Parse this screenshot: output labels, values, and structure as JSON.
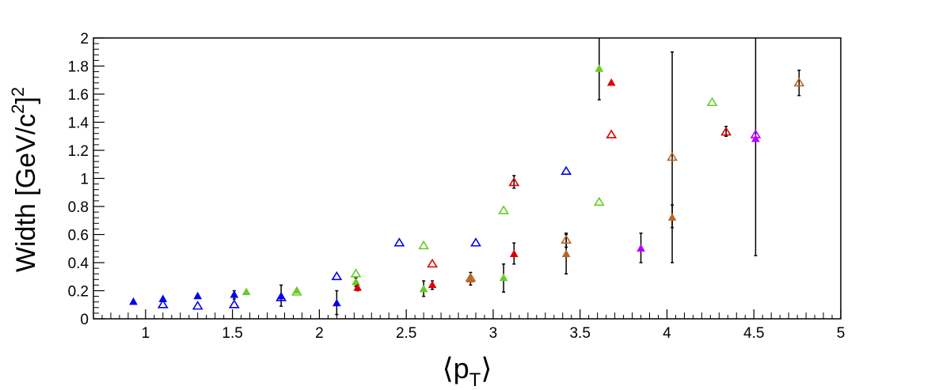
{
  "chart_data": {
    "type": "scatter",
    "title": "",
    "ylabel": "Width [GeV/c",
    "ylabel_sup": "2",
    "ylabel_close": "]",
    "ylabel_sup2": "2",
    "xlabel": "⟨p",
    "xlabel_sub": "T",
    "xlabel_close": "⟩",
    "xlim": [
      0.7,
      5.0
    ],
    "ylim": [
      0,
      2
    ],
    "x_ticks": [
      1,
      1.5,
      2,
      2.5,
      3,
      3.5,
      4,
      4.5,
      5
    ],
    "x_tick_labels": [
      "1",
      "1.5",
      "2",
      "2.5",
      "3",
      "3.5",
      "4",
      "4.5",
      "5"
    ],
    "y_ticks": [
      0,
      0.2,
      0.4,
      0.6,
      0.8,
      1,
      1.2,
      1.4,
      1.6,
      1.8,
      2
    ],
    "y_tick_labels": [
      "0",
      "0.2",
      "0.4",
      "0.6",
      "0.8",
      "1",
      "1.2",
      "1.4",
      "1.6",
      "1.8",
      "2"
    ],
    "grid": false,
    "legend": "none",
    "colors": {
      "blue": "#0000ee",
      "green": "#66cc22",
      "red": "#dd0000",
      "brown": "#bb6622",
      "magenta": "#bb00ff",
      "error_bar": "#000000"
    },
    "series": [
      {
        "color": "blue",
        "marker": "filled-triangle",
        "points": [
          {
            "x": 0.93,
            "y": 0.12
          },
          {
            "x": 1.1,
            "y": 0.14
          },
          {
            "x": 1.3,
            "y": 0.16
          },
          {
            "x": 1.51,
            "y": 0.17,
            "yerr_low": 0.03,
            "yerr_high": 0.03
          },
          {
            "x": 1.78,
            "y": 0.16,
            "yerr_low": 0.07,
            "yerr_high": 0.08
          },
          {
            "x": 2.1,
            "y": 0.11,
            "yerr_low": 0.08,
            "yerr_high": 0.09
          }
        ]
      },
      {
        "color": "blue",
        "marker": "open-triangle",
        "points": [
          {
            "x": 1.1,
            "y": 0.1
          },
          {
            "x": 1.3,
            "y": 0.09
          },
          {
            "x": 1.51,
            "y": 0.1
          },
          {
            "x": 1.78,
            "y": 0.15
          },
          {
            "x": 2.1,
            "y": 0.3
          },
          {
            "x": 2.46,
            "y": 0.54
          },
          {
            "x": 2.9,
            "y": 0.54
          },
          {
            "x": 3.42,
            "y": 1.05
          }
        ]
      },
      {
        "color": "green",
        "marker": "filled-triangle",
        "points": [
          {
            "x": 1.58,
            "y": 0.19
          },
          {
            "x": 1.87,
            "y": 0.2
          },
          {
            "x": 2.21,
            "y": 0.26,
            "yerr_low": 0.03,
            "yerr_high": 0.03
          },
          {
            "x": 2.6,
            "y": 0.21,
            "yerr_low": 0.05,
            "yerr_high": 0.06
          },
          {
            "x": 3.06,
            "y": 0.29,
            "yerr_low": 0.1,
            "yerr_high": 0.1
          },
          {
            "x": 3.61,
            "y": 1.78,
            "yerr_low": 0.22,
            "yerr_high": 0.22
          }
        ]
      },
      {
        "color": "green",
        "marker": "open-triangle",
        "points": [
          {
            "x": 1.87,
            "y": 0.19
          },
          {
            "x": 2.21,
            "y": 0.32
          },
          {
            "x": 2.6,
            "y": 0.52
          },
          {
            "x": 3.06,
            "y": 0.77
          },
          {
            "x": 3.61,
            "y": 0.83
          },
          {
            "x": 4.26,
            "y": 1.54
          }
        ]
      },
      {
        "color": "red",
        "marker": "filled-triangle",
        "points": [
          {
            "x": 2.22,
            "y": 0.22,
            "yerr_low": 0.02,
            "yerr_high": 0.02
          },
          {
            "x": 2.65,
            "y": 0.24,
            "yerr_low": 0.03,
            "yerr_high": 0.03
          },
          {
            "x": 3.12,
            "y": 0.46,
            "yerr_low": 0.07,
            "yerr_high": 0.08
          },
          {
            "x": 3.68,
            "y": 1.68
          }
        ]
      },
      {
        "color": "red",
        "marker": "open-triangle",
        "points": [
          {
            "x": 2.65,
            "y": 0.39
          },
          {
            "x": 3.12,
            "y": 0.97,
            "yerr_low": 0.04,
            "yerr_high": 0.05
          },
          {
            "x": 3.68,
            "y": 1.31
          },
          {
            "x": 4.34,
            "y": 1.33,
            "yerr_low": 0.03,
            "yerr_high": 0.04
          }
        ]
      },
      {
        "color": "brown",
        "marker": "filled-triangle",
        "points": [
          {
            "x": 2.87,
            "y": 0.28,
            "yerr_low": 0.04,
            "yerr_high": 0.05
          },
          {
            "x": 3.42,
            "y": 0.46,
            "yerr_low": 0.14,
            "yerr_high": 0.14
          },
          {
            "x": 4.03,
            "y": 0.72,
            "yerr_low": 0.32,
            "yerr_high": 0.09
          }
        ]
      },
      {
        "color": "brown",
        "marker": "open-triangle",
        "points": [
          {
            "x": 2.87,
            "y": 0.29
          },
          {
            "x": 3.42,
            "y": 0.56,
            "yerr_low": 0.05,
            "yerr_high": 0.05
          },
          {
            "x": 4.03,
            "y": 1.15,
            "yerr_low": 0.5,
            "yerr_high": 0.75
          },
          {
            "x": 4.76,
            "y": 1.68,
            "yerr_low": 0.09,
            "yerr_high": 0.09
          }
        ]
      },
      {
        "color": "magenta",
        "marker": "filled-triangle",
        "points": [
          {
            "x": 3.85,
            "y": 0.5,
            "yerr_low": 0.1,
            "yerr_high": 0.11
          },
          {
            "x": 4.51,
            "y": 1.28,
            "yerr_low": 0.83,
            "yerr_high": 0.75
          }
        ]
      },
      {
        "color": "magenta",
        "marker": "open-triangle",
        "points": [
          {
            "x": 4.51,
            "y": 1.31
          }
        ]
      }
    ]
  }
}
